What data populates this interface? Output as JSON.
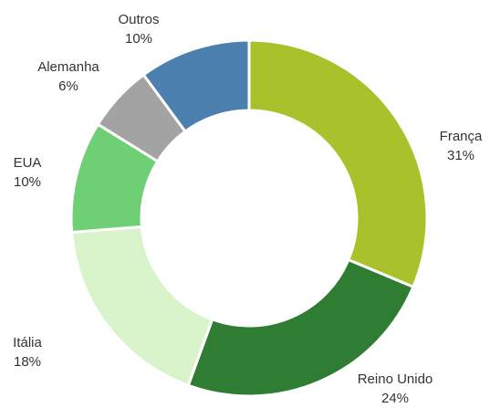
{
  "chart_data": {
    "type": "donut",
    "categories": [
      "França",
      "Reino Unido",
      "Itália",
      "EUA",
      "Alemanha",
      "Outros"
    ],
    "values": [
      31,
      24,
      18,
      10,
      6,
      10
    ],
    "value_labels": [
      "31%",
      "24%",
      "18%",
      "10%",
      "6%",
      "10%"
    ],
    "colors": [
      "#a9c22c",
      "#2e7d32",
      "#d9f3cb",
      "#6fcf74",
      "#a3a3a3",
      "#4a7fae"
    ]
  }
}
